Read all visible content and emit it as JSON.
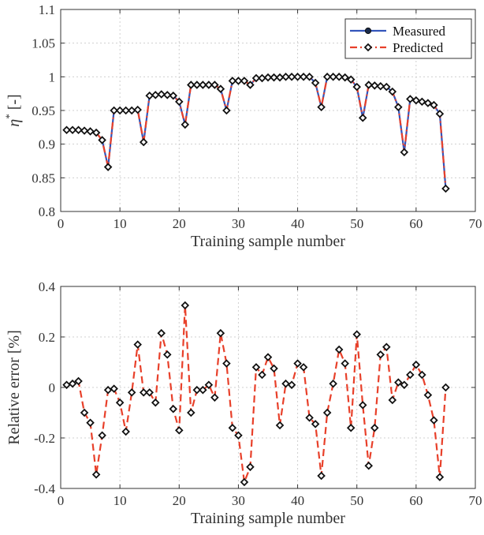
{
  "colors": {
    "measured": "#3355bb",
    "predicted": "#e8402a",
    "marker": "#111111",
    "ylabel_top": "#b05a2a"
  },
  "chart_data": [
    {
      "type": "line",
      "xlabel": "Training sample number",
      "ylabel_main": "η",
      "ylabel_sup": "*",
      "ylabel_rest": " [-]",
      "xlim": [
        0,
        70
      ],
      "ylim": [
        0.8,
        1.1
      ],
      "xticks": [
        0,
        10,
        20,
        30,
        40,
        50,
        60,
        70
      ],
      "yticks": [
        0.8,
        0.85,
        0.9,
        0.95,
        1,
        1.05,
        1.1
      ],
      "ytick_labels": [
        "0.8",
        "0.85",
        "0.9",
        "0.95",
        "1",
        "1.05",
        "1.1"
      ],
      "grid": true,
      "legend": {
        "position": "top-right",
        "entries": [
          "Measured",
          "Predicted"
        ]
      },
      "x": [
        1,
        2,
        3,
        4,
        5,
        6,
        7,
        8,
        9,
        10,
        11,
        12,
        13,
        14,
        15,
        16,
        17,
        18,
        19,
        20,
        21,
        22,
        23,
        24,
        25,
        26,
        27,
        28,
        29,
        30,
        31,
        32,
        33,
        34,
        35,
        36,
        37,
        38,
        39,
        40,
        41,
        42,
        43,
        44,
        45,
        46,
        47,
        48,
        49,
        50,
        51,
        52,
        53,
        54,
        55,
        56,
        57,
        58,
        59,
        60,
        61,
        62,
        63,
        64,
        65
      ],
      "series": [
        {
          "name": "Measured",
          "values": [
            0.921,
            0.921,
            0.921,
            0.92,
            0.919,
            0.917,
            0.906,
            0.866,
            0.95,
            0.95,
            0.95,
            0.95,
            0.951,
            0.903,
            0.972,
            0.973,
            0.974,
            0.973,
            0.972,
            0.963,
            0.929,
            0.988,
            0.988,
            0.988,
            0.988,
            0.988,
            0.982,
            0.95,
            0.994,
            0.994,
            0.994,
            0.988,
            0.998,
            0.998,
            0.999,
            0.999,
            0.999,
            1.0,
            1.0,
            1.0,
            1.0,
            1.0,
            0.991,
            0.955,
            1.0,
            1.0,
            1.0,
            0.999,
            0.996,
            0.985,
            0.939,
            0.988,
            0.987,
            0.986,
            0.985,
            0.978,
            0.955,
            0.888,
            0.967,
            0.965,
            0.963,
            0.961,
            0.958,
            0.945,
            0.834
          ]
        },
        {
          "name": "Predicted",
          "values": [
            0.921,
            0.921,
            0.921,
            0.92,
            0.919,
            0.917,
            0.906,
            0.866,
            0.95,
            0.95,
            0.95,
            0.95,
            0.951,
            0.903,
            0.972,
            0.973,
            0.974,
            0.973,
            0.972,
            0.963,
            0.929,
            0.988,
            0.988,
            0.988,
            0.988,
            0.988,
            0.982,
            0.95,
            0.994,
            0.994,
            0.994,
            0.988,
            0.998,
            0.998,
            0.999,
            0.999,
            0.999,
            1.0,
            1.0,
            1.0,
            1.0,
            1.0,
            0.991,
            0.955,
            1.0,
            1.0,
            1.0,
            0.999,
            0.996,
            0.985,
            0.939,
            0.988,
            0.987,
            0.986,
            0.985,
            0.978,
            0.955,
            0.888,
            0.967,
            0.965,
            0.963,
            0.961,
            0.958,
            0.945,
            0.834
          ]
        }
      ]
    },
    {
      "type": "line",
      "xlabel": "Training sample number",
      "ylabel": "Relative error [%]",
      "xlim": [
        0,
        70
      ],
      "ylim": [
        -0.4,
        0.4
      ],
      "xticks": [
        0,
        10,
        20,
        30,
        40,
        50,
        60,
        70
      ],
      "yticks": [
        -0.4,
        -0.2,
        0,
        0.2,
        0.4
      ],
      "ytick_labels": [
        "-0.4",
        "-0.2",
        "0",
        "0.2",
        "0.4"
      ],
      "grid": true,
      "x": [
        1,
        2,
        3,
        4,
        5,
        6,
        7,
        8,
        9,
        10,
        11,
        12,
        13,
        14,
        15,
        16,
        17,
        18,
        19,
        20,
        21,
        22,
        23,
        24,
        25,
        26,
        27,
        28,
        29,
        30,
        31,
        32,
        33,
        34,
        35,
        36,
        37,
        38,
        39,
        40,
        41,
        42,
        43,
        44,
        45,
        46,
        47,
        48,
        49,
        50,
        51,
        52,
        53,
        54,
        55,
        56,
        57,
        58,
        59,
        60,
        61,
        62,
        63,
        64,
        65
      ],
      "series": [
        {
          "name": "",
          "values": [
            0.01,
            0.015,
            0.025,
            -0.1,
            -0.14,
            -0.345,
            -0.19,
            -0.01,
            -0.005,
            -0.06,
            -0.175,
            -0.02,
            0.17,
            -0.02,
            -0.02,
            -0.06,
            0.215,
            0.13,
            -0.085,
            -0.17,
            0.325,
            -0.1,
            -0.01,
            -0.01,
            0.01,
            -0.04,
            0.215,
            0.095,
            -0.16,
            -0.19,
            -0.375,
            -0.315,
            0.08,
            0.05,
            0.12,
            0.075,
            -0.15,
            0.015,
            0.01,
            0.095,
            0.08,
            -0.12,
            -0.145,
            -0.35,
            -0.1,
            0.015,
            0.15,
            0.095,
            -0.16,
            0.21,
            -0.07,
            -0.31,
            -0.16,
            0.13,
            0.16,
            -0.05,
            0.02,
            0.01,
            0.05,
            0.09,
            0.05,
            -0.03,
            -0.13,
            -0.355,
            0.0
          ]
        }
      ]
    }
  ]
}
